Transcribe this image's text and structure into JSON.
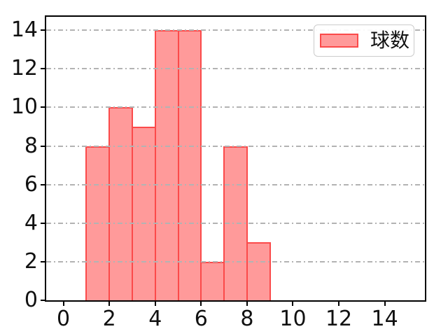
{
  "chart_data": {
    "type": "bar",
    "subtype": "histogram",
    "bin_edges": [
      1,
      2,
      3,
      4,
      5,
      6,
      7,
      8,
      9
    ],
    "values": [
      8,
      10,
      9,
      14,
      14,
      2,
      8,
      3
    ],
    "series": [
      {
        "name": "球数",
        "values": [
          8,
          10,
          9,
          14,
          14,
          2,
          8,
          3
        ]
      }
    ],
    "xlim": [
      -0.75,
      15.75
    ],
    "ylim": [
      0,
      14.7
    ],
    "xticks": [
      "0",
      "2",
      "4",
      "6",
      "8",
      "10",
      "12",
      "14"
    ],
    "xtick_values": [
      0,
      2,
      4,
      6,
      8,
      10,
      12,
      14
    ],
    "yticks": [
      "0",
      "2",
      "4",
      "6",
      "8",
      "10",
      "12",
      "14"
    ],
    "ytick_values": [
      0,
      2,
      4,
      6,
      8,
      10,
      12,
      14
    ],
    "grid": {
      "axis": "y",
      "linestyle": "dash-dot",
      "above_bars": true
    },
    "legend": {
      "label": "球数",
      "position": "upper-right"
    },
    "colors": {
      "bar_fill": "#ff9a9a",
      "bar_edge": "#fb4a4a",
      "grid": "#b3b3b3",
      "spine": "#000000",
      "tick_label": "#111111",
      "legend_border": "#cccccc",
      "legend_background": "#ffffff"
    }
  }
}
